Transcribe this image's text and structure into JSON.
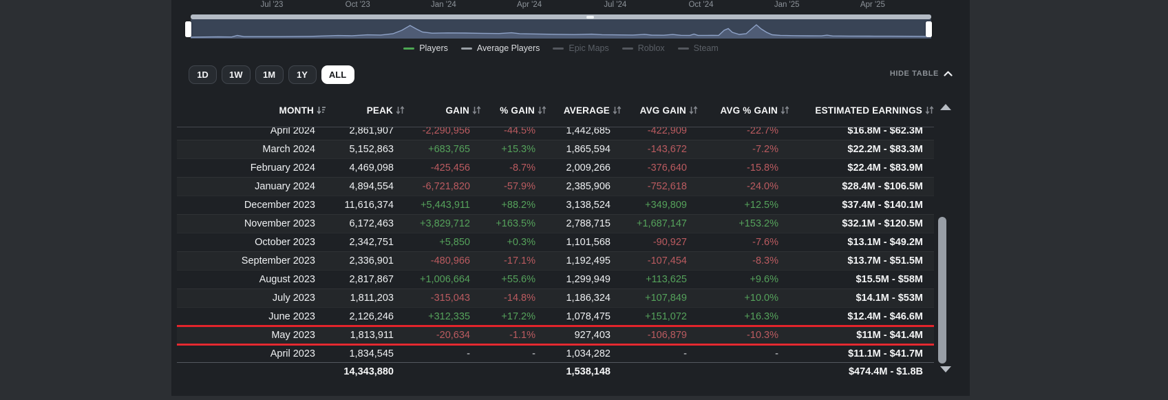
{
  "chart": {
    "axis_labels": [
      "Jul '23",
      "Oct '23",
      "Jan '24",
      "Apr '24",
      "Jul '24",
      "Oct '24",
      "Jan '25",
      "Apr '25"
    ],
    "legend": [
      {
        "label": "Players",
        "dash_color": "#4da853",
        "enabled": true
      },
      {
        "label": "Average Players",
        "dash_color": "#9aa0a6",
        "enabled": true
      },
      {
        "label": "Epic Maps",
        "dash_color": "#54585e",
        "enabled": false
      },
      {
        "label": "Roblox",
        "dash_color": "#54585e",
        "enabled": false
      },
      {
        "label": "Steam",
        "dash_color": "#54585e",
        "enabled": false
      }
    ],
    "navigator_points": [
      [
        0,
        26
      ],
      [
        40,
        25.5
      ],
      [
        60,
        25.7
      ],
      [
        68,
        23.5
      ],
      [
        78,
        25.2
      ],
      [
        130,
        25.2
      ],
      [
        175,
        24.8
      ],
      [
        215,
        23.6
      ],
      [
        235,
        23.9
      ],
      [
        258,
        22.6
      ],
      [
        277,
        22.9
      ],
      [
        295,
        21
      ],
      [
        308,
        16
      ],
      [
        320,
        9
      ],
      [
        329,
        14
      ],
      [
        338,
        18.5
      ],
      [
        352,
        20.2
      ],
      [
        375,
        19.8
      ],
      [
        400,
        20
      ],
      [
        425,
        20.4
      ],
      [
        450,
        20.7
      ],
      [
        468,
        19.6
      ],
      [
        480,
        20.9
      ],
      [
        500,
        21.3
      ],
      [
        530,
        21.8
      ],
      [
        560,
        22.2
      ],
      [
        585,
        21.6
      ],
      [
        600,
        22.4
      ],
      [
        625,
        22.7
      ],
      [
        645,
        22.9
      ],
      [
        662,
        21.9
      ],
      [
        672,
        23
      ],
      [
        690,
        23.2
      ],
      [
        703,
        22.1
      ],
      [
        715,
        23.3
      ],
      [
        728,
        23.4
      ],
      [
        734,
        21.5
      ],
      [
        740,
        23.4
      ],
      [
        752,
        23.4
      ],
      [
        760,
        23.3
      ],
      [
        770,
        23.4
      ],
      [
        778,
        16
      ],
      [
        784,
        13.5
      ],
      [
        790,
        19
      ],
      [
        800,
        22
      ],
      [
        810,
        21
      ],
      [
        818,
        14
      ],
      [
        825,
        8
      ],
      [
        832,
        14
      ],
      [
        840,
        19
      ],
      [
        848,
        22.5
      ],
      [
        860,
        23.4
      ],
      [
        880,
        23.8
      ],
      [
        900,
        24
      ],
      [
        920,
        24.1
      ],
      [
        928,
        23.1
      ],
      [
        936,
        24.2
      ],
      [
        960,
        24.4
      ],
      [
        990,
        24.5
      ],
      [
        1020,
        24.6
      ],
      [
        1050,
        24.7
      ],
      [
        1080,
        24.9
      ]
    ]
  },
  "toolbar": {
    "ranges": [
      {
        "label": "1D",
        "active": false
      },
      {
        "label": "1W",
        "active": false
      },
      {
        "label": "1M",
        "active": false
      },
      {
        "label": "1Y",
        "active": false
      },
      {
        "label": "ALL",
        "active": true
      }
    ],
    "hide_table_label": "HIDE TABLE"
  },
  "colors": {
    "positive": "#55a25b",
    "negative": "#bb5b60",
    "highlight_border": "#e3242b",
    "navigator_line": "#8fa3c8",
    "active_range_bg": "#ffffff"
  },
  "table": {
    "columns": [
      {
        "label": "MONTH",
        "sort": "desc"
      },
      {
        "label": "PEAK",
        "sort": "both"
      },
      {
        "label": "GAIN",
        "sort": "both"
      },
      {
        "label": "% GAIN",
        "sort": "both"
      },
      {
        "label": "AVERAGE",
        "sort": "both"
      },
      {
        "label": "AVG GAIN",
        "sort": "both"
      },
      {
        "label": "AVG % GAIN",
        "sort": "both"
      },
      {
        "label": "ESTIMATED EARNINGS",
        "sort": "both"
      }
    ],
    "rows": [
      {
        "month": "April 2024",
        "peak": "2,861,907",
        "gain": "-2,290,956",
        "gain_pct": "-44.5%",
        "average": "1,442,685",
        "avg_gain": "-422,909",
        "avg_gain_pct": "-22.7%",
        "earnings": "$16.8M - $62.3M",
        "highlighted": false
      },
      {
        "month": "March 2024",
        "peak": "5,152,863",
        "gain": "+683,765",
        "gain_pct": "+15.3%",
        "average": "1,865,594",
        "avg_gain": "-143,672",
        "avg_gain_pct": "-7.2%",
        "earnings": "$22.2M - $83.3M",
        "highlighted": false
      },
      {
        "month": "February 2024",
        "peak": "4,469,098",
        "gain": "-425,456",
        "gain_pct": "-8.7%",
        "average": "2,009,266",
        "avg_gain": "-376,640",
        "avg_gain_pct": "-15.8%",
        "earnings": "$22.4M - $83.9M",
        "highlighted": false
      },
      {
        "month": "January 2024",
        "peak": "4,894,554",
        "gain": "-6,721,820",
        "gain_pct": "-57.9%",
        "average": "2,385,906",
        "avg_gain": "-752,618",
        "avg_gain_pct": "-24.0%",
        "earnings": "$28.4M - $106.5M",
        "highlighted": false
      },
      {
        "month": "December 2023",
        "peak": "11,616,374",
        "gain": "+5,443,911",
        "gain_pct": "+88.2%",
        "average": "3,138,524",
        "avg_gain": "+349,809",
        "avg_gain_pct": "+12.5%",
        "earnings": "$37.4M - $140.1M",
        "highlighted": false
      },
      {
        "month": "November 2023",
        "peak": "6,172,463",
        "gain": "+3,829,712",
        "gain_pct": "+163.5%",
        "average": "2,788,715",
        "avg_gain": "+1,687,147",
        "avg_gain_pct": "+153.2%",
        "earnings": "$32.1M - $120.5M",
        "highlighted": false
      },
      {
        "month": "October 2023",
        "peak": "2,342,751",
        "gain": "+5,850",
        "gain_pct": "+0.3%",
        "average": "1,101,568",
        "avg_gain": "-90,927",
        "avg_gain_pct": "-7.6%",
        "earnings": "$13.1M - $49.2M",
        "highlighted": false
      },
      {
        "month": "September 2023",
        "peak": "2,336,901",
        "gain": "-480,966",
        "gain_pct": "-17.1%",
        "average": "1,192,495",
        "avg_gain": "-107,454",
        "avg_gain_pct": "-8.3%",
        "earnings": "$13.7M - $51.5M",
        "highlighted": false
      },
      {
        "month": "August 2023",
        "peak": "2,817,867",
        "gain": "+1,006,664",
        "gain_pct": "+55.6%",
        "average": "1,299,949",
        "avg_gain": "+113,625",
        "avg_gain_pct": "+9.6%",
        "earnings": "$15.5M - $58M",
        "highlighted": false
      },
      {
        "month": "July 2023",
        "peak": "1,811,203",
        "gain": "-315,043",
        "gain_pct": "-14.8%",
        "average": "1,186,324",
        "avg_gain": "+107,849",
        "avg_gain_pct": "+10.0%",
        "earnings": "$14.1M - $53M",
        "highlighted": false
      },
      {
        "month": "June 2023",
        "peak": "2,126,246",
        "gain": "+312,335",
        "gain_pct": "+17.2%",
        "average": "1,078,475",
        "avg_gain": "+151,072",
        "avg_gain_pct": "+16.3%",
        "earnings": "$12.4M - $46.6M",
        "highlighted": false
      },
      {
        "month": "May 2023",
        "peak": "1,813,911",
        "gain": "-20,634",
        "gain_pct": "-1.1%",
        "average": "927,403",
        "avg_gain": "-106,879",
        "avg_gain_pct": "-10.3%",
        "earnings": "$11M - $41.4M",
        "highlighted": true
      },
      {
        "month": "April 2023",
        "peak": "1,834,545",
        "gain": "-",
        "gain_pct": "-",
        "average": "1,034,282",
        "avg_gain": "-",
        "avg_gain_pct": "-",
        "earnings": "$11.1M - $41.7M",
        "highlighted": false
      }
    ],
    "totals": {
      "peak": "14,343,880",
      "average": "1,538,148",
      "earnings": "$474.4M - $1.8B"
    }
  }
}
